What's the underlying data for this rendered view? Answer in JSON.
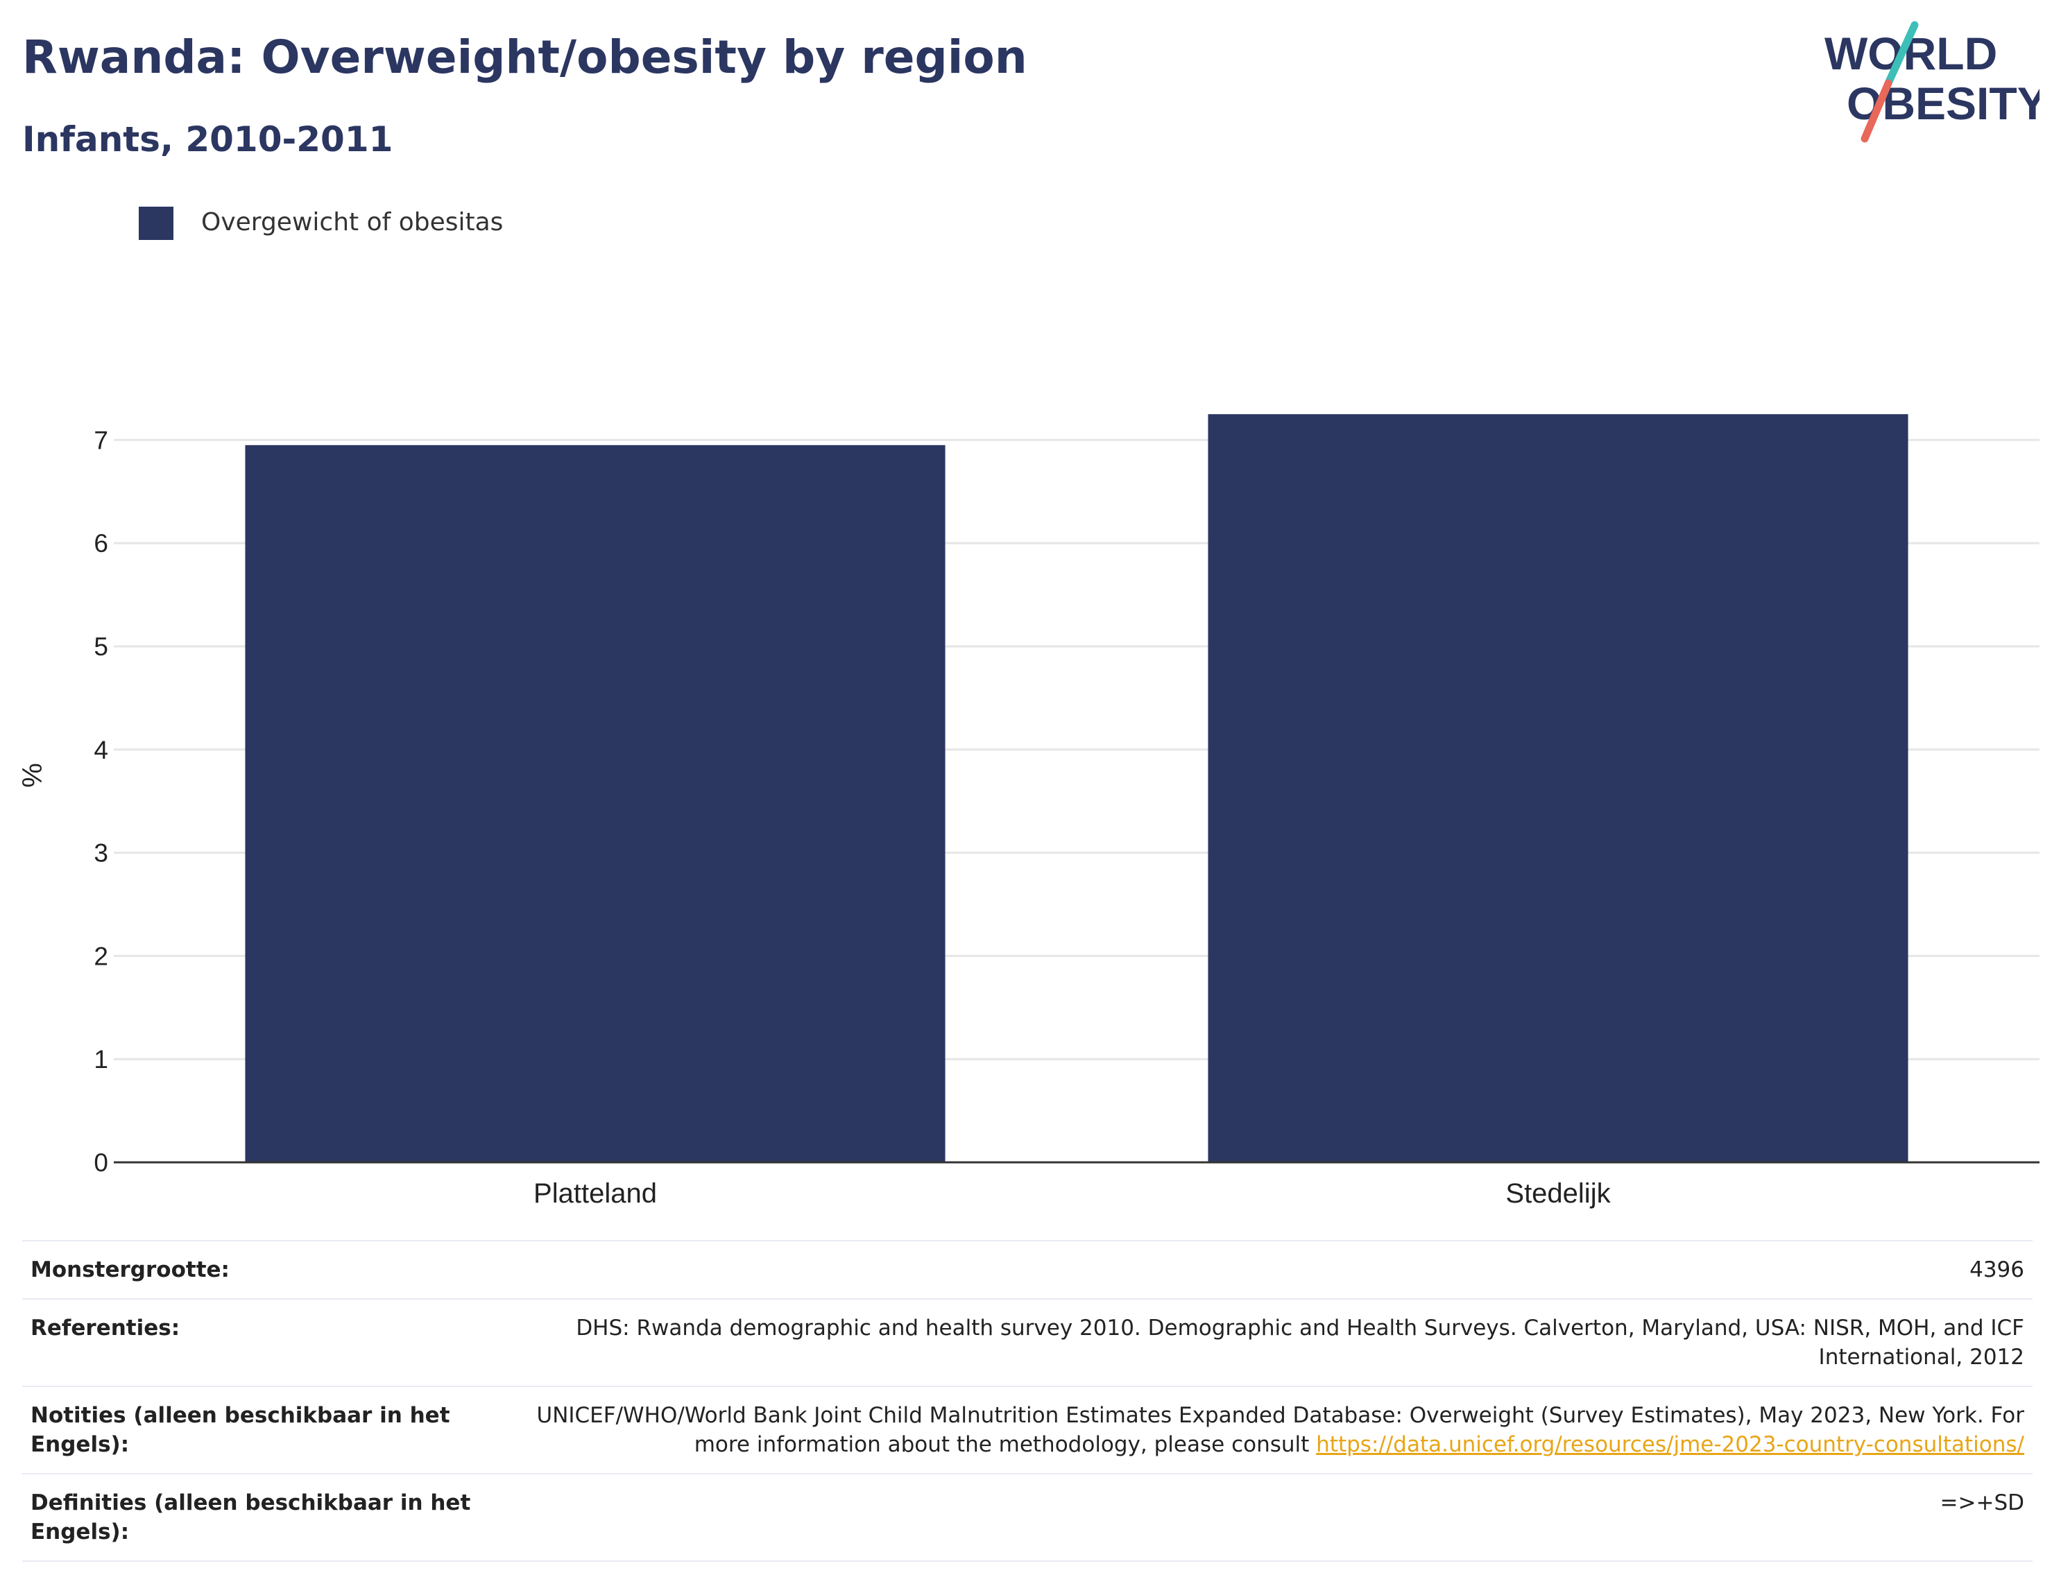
{
  "header": {
    "title": "Rwanda: Overweight/obesity by region",
    "subtitle": "Infants, 2010-2011"
  },
  "logo": {
    "line1": "WORLD",
    "line2": "OBESITY"
  },
  "colors": {
    "bar": "#2b3661",
    "grid": "#e6e6e6",
    "axis": "#333333",
    "accent_teal": "#3dbfb8",
    "accent_red": "#e8685a",
    "link": "#e8a516"
  },
  "chart_data": {
    "type": "bar",
    "categories": [
      "Platteland",
      "Stedelijk"
    ],
    "series": [
      {
        "name": "Overgewicht of obesitas",
        "values": [
          6.95,
          7.25
        ]
      }
    ],
    "title": "Rwanda: Overweight/obesity by region",
    "subtitle": "Infants, 2010-2011",
    "xlabel": "",
    "ylabel": "%",
    "ylim": [
      0,
      7.5
    ],
    "yticks": [
      "0",
      "1",
      "2",
      "3",
      "4",
      "5",
      "6",
      "7"
    ],
    "grid": true,
    "legend": "top-left"
  },
  "meta": {
    "sample_size": {
      "label": "Monstergrootte:",
      "value": "4396"
    },
    "references": {
      "label": "Referenties:",
      "value": "DHS: Rwanda demographic and health survey 2010. Demographic and Health Surveys. Calverton, Maryland, USA: NISR, MOH, and ICF International, 2012"
    },
    "notes": {
      "label": "Notities (alleen beschikbaar in het Engels):",
      "value": "UNICEF/WHO/World Bank Joint Child Malnutrition Estimates Expanded Database: Overweight (Survey Estimates), May 2023, New York. For more information about the methodology, please consult",
      "link": "https://data.unicef.org/resources/jme-2023-country-consultations/"
    },
    "definitions": {
      "label": "Definities (alleen beschikbaar in het Engels):",
      "value": "=>+SD"
    }
  }
}
